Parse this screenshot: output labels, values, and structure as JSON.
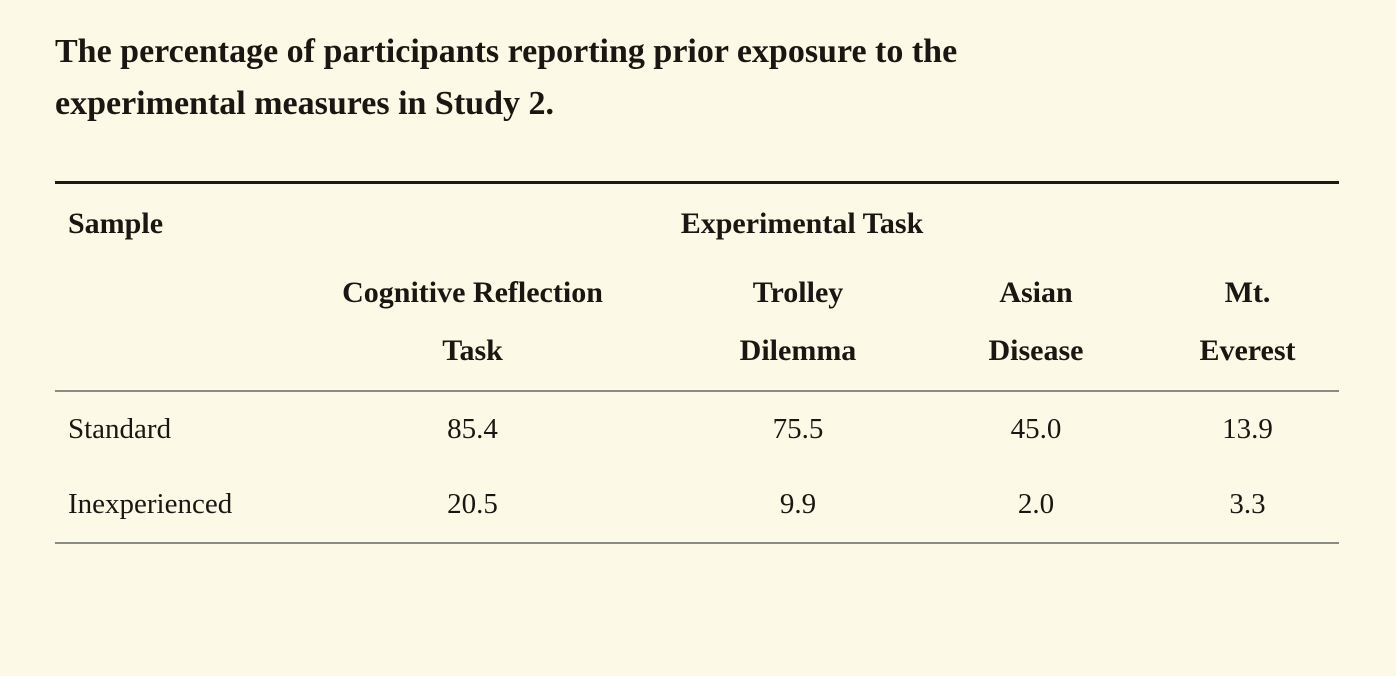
{
  "title": "The percentage of participants reporting prior exposure to the\nexperimental measures in Study 2.",
  "table": {
    "corner_header": "Sample",
    "group_header": "Experimental Task",
    "columns": [
      "Cognitive Reflection\nTask",
      "Trolley\nDilemma",
      "Asian\nDisease",
      "Mt.\nEverest"
    ],
    "rows": [
      {
        "label": "Standard",
        "values": [
          "85.4",
          "75.5",
          "45.0",
          "13.9"
        ]
      },
      {
        "label": "Inexperienced",
        "values": [
          "20.5",
          "9.9",
          "2.0",
          "3.3"
        ]
      }
    ]
  },
  "colors": {
    "background": "#fcf9e6",
    "text": "#1a1713",
    "rule_dark": "#1b1a16",
    "rule_gray": "#8b8b85"
  }
}
